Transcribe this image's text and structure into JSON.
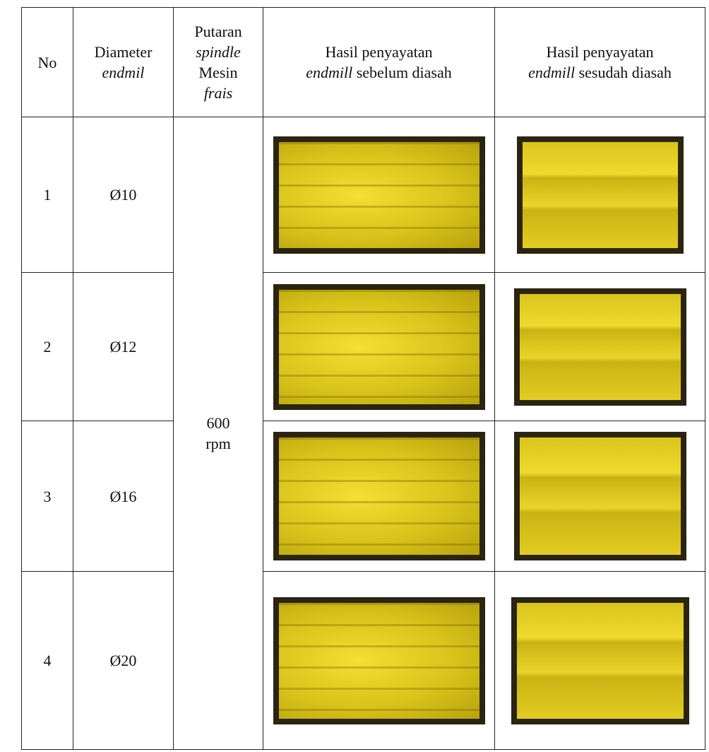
{
  "table": {
    "header": [
      [
        "No"
      ],
      [
        "Diameter",
        "endmil"
      ],
      [
        "Putaran",
        "spindle",
        "Mesin",
        "frais"
      ],
      [
        "Hasil penyayatan",
        "endmill",
        "sebelum diasah"
      ],
      [
        "Hasil penyayatan",
        "endmill",
        "sesudah diasah"
      ]
    ],
    "rows": [
      [
        "1",
        "Ø10"
      ],
      [
        "2",
        "Ø12"
      ],
      [
        "3",
        "Ø16"
      ],
      [
        "4",
        "Ø20"
      ]
    ],
    "spindle": [
      "600",
      "rpm"
    ]
  }
}
